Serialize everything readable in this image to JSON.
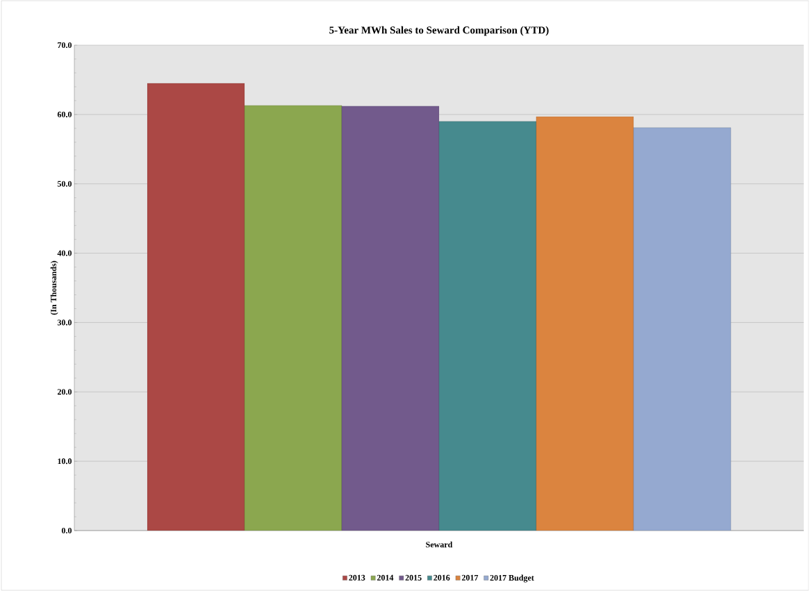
{
  "chart_data": {
    "type": "bar",
    "title": "5-Year MWh Sales to Seward Comparison (YTD)",
    "ylabel": "(In Thousands)",
    "categories": [
      "Seward"
    ],
    "series": [
      {
        "name": "2013",
        "color": "#ab4845",
        "values": [
          64.5
        ]
      },
      {
        "name": "2014",
        "color": "#8ba74f",
        "values": [
          61.3
        ]
      },
      {
        "name": "2015",
        "color": "#725a8c",
        "values": [
          61.2
        ]
      },
      {
        "name": "2016",
        "color": "#468a8e",
        "values": [
          59.0
        ]
      },
      {
        "name": "2017",
        "color": "#db843f",
        "values": [
          59.7
        ]
      },
      {
        "name": "2017 Budget",
        "color": "#95a9d0",
        "values": [
          58.1
        ]
      }
    ],
    "ylim": [
      0,
      70
    ],
    "yticks": [
      {
        "value": 0,
        "label": "0.0"
      },
      {
        "value": 10,
        "label": "10.0"
      },
      {
        "value": 20,
        "label": "20.0"
      },
      {
        "value": 30,
        "label": "30.0"
      },
      {
        "value": 40,
        "label": "40.0"
      },
      {
        "value": 50,
        "label": "50.0"
      },
      {
        "value": 60,
        "label": "60.0"
      },
      {
        "value": 70,
        "label": "70.0"
      }
    ],
    "grid": "y",
    "legend": "bottom"
  }
}
